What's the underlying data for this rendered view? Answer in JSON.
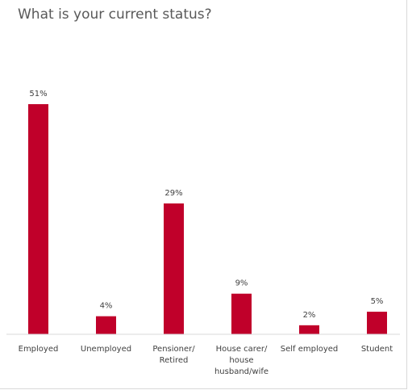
{
  "chart_data": {
    "type": "bar",
    "title": "What is your current status?",
    "categories": [
      [
        "Employed"
      ],
      [
        "Unemployed"
      ],
      [
        "Pensioner/",
        "Retired"
      ],
      [
        "House carer/",
        "house",
        "husband/wife"
      ],
      [
        "Self employed"
      ],
      [
        "Student"
      ]
    ],
    "values": [
      51,
      4,
      29,
      9,
      2,
      5
    ],
    "value_labels": [
      "51%",
      "4%",
      "29%",
      "9%",
      "2%",
      "5%"
    ],
    "unit": "%",
    "ylim": [
      0,
      51
    ],
    "grid": false,
    "legend": "none",
    "bar_color": "#c0002a",
    "axis_color": "#d9d9d9"
  }
}
